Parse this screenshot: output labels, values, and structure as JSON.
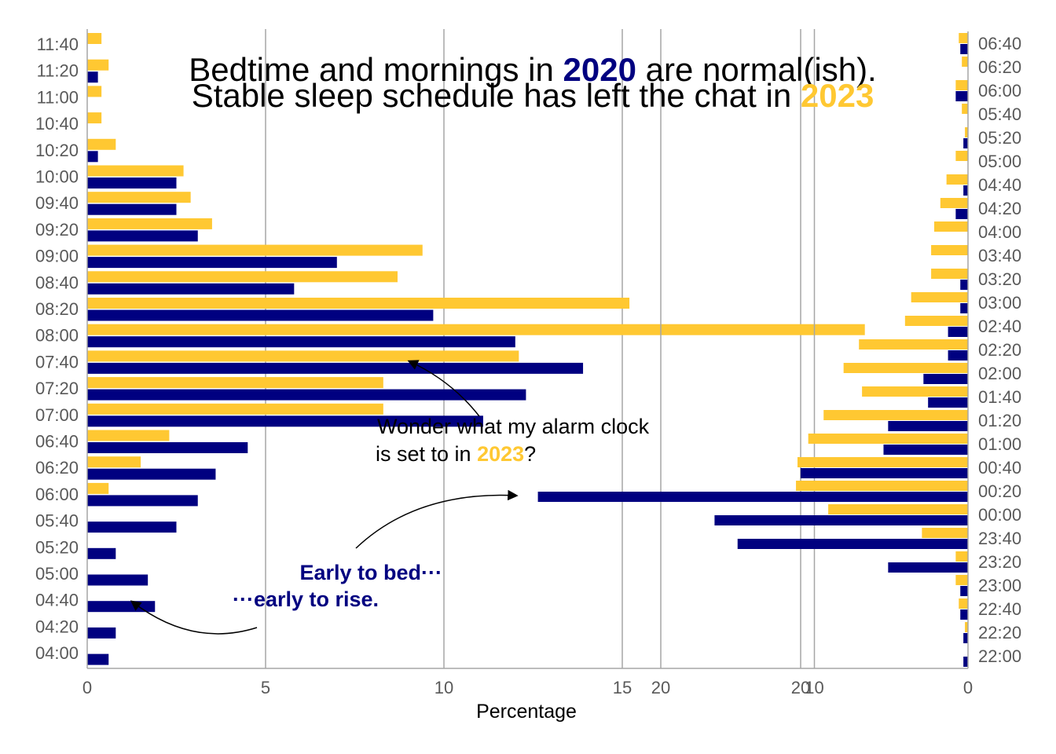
{
  "colors": {
    "y2020": "#000080",
    "y2023": "#ffc832",
    "grid": "#a6a6a6",
    "tick": "#595959"
  },
  "title": {
    "line1_a": "Bedtime and mornings in ",
    "line1_year": "2020",
    "line1_b": " are normal(ish).",
    "line2_a": "Stable sleep schedule has left the chat in ",
    "line2_year": "2023"
  },
  "annotations": {
    "alarm_a": "Wonder what my alarm clock",
    "alarm_b": "is set to in ",
    "alarm_year": "2023",
    "alarm_q": "?",
    "early_1": "Early to bed···",
    "early_2": "···early to rise."
  },
  "chart_data": [
    {
      "type": "bar",
      "orientation": "horizontal",
      "panel": "mornings",
      "categories": [
        "04:00",
        "04:20",
        "04:40",
        "05:00",
        "05:20",
        "05:40",
        "06:00",
        "06:20",
        "06:40",
        "07:00",
        "07:20",
        "07:40",
        "08:00",
        "08:20",
        "08:40",
        "09:00",
        "09:20",
        "09:40",
        "10:00",
        "10:20",
        "10:40",
        "11:00",
        "11:20",
        "11:40"
      ],
      "series": [
        {
          "name": "2023",
          "values": [
            0,
            0,
            0,
            0,
            0,
            0,
            0.6,
            1.5,
            2.3,
            8.3,
            8.3,
            12.1,
            21.8,
            15.2,
            8.7,
            9.4,
            3.5,
            2.9,
            2.7,
            0.8,
            0.4,
            0.4,
            0.6,
            0.4
          ]
        },
        {
          "name": "2020",
          "values": [
            0.6,
            0.8,
            1.9,
            1.7,
            0.8,
            2.5,
            3.1,
            3.6,
            4.5,
            11.1,
            12.3,
            13.9,
            12.0,
            9.7,
            5.8,
            7.0,
            3.1,
            2.5,
            2.5,
            0.3,
            0,
            0,
            0.3,
            0
          ]
        }
      ],
      "xlabel": "Percentage",
      "xlim": [
        0,
        25
      ],
      "xticks": [
        0,
        5,
        10,
        15,
        20
      ]
    },
    {
      "type": "bar",
      "orientation": "horizontal",
      "panel": "bedtimes",
      "x_reversed": true,
      "categories": [
        "22:00",
        "22:20",
        "22:40",
        "23:00",
        "23:20",
        "23:40",
        "00:00",
        "00:20",
        "00:40",
        "01:00",
        "01:20",
        "01:40",
        "02:00",
        "02:20",
        "02:40",
        "03:00",
        "03:20",
        "03:40",
        "04:00",
        "04:20",
        "04:40",
        "05:00",
        "05:20",
        "05:40",
        "06:00",
        "06:20",
        "06:40"
      ],
      "series": [
        {
          "name": "2023",
          "values": [
            0,
            0.2,
            0.6,
            0.8,
            0.8,
            3.0,
            9.1,
            11.2,
            11.1,
            10.4,
            9.4,
            6.9,
            8.1,
            7.1,
            4.1,
            3.7,
            2.4,
            2.4,
            2.2,
            1.8,
            1.4,
            0.8,
            0.2,
            0.4,
            0.8,
            0.4,
            0.6
          ]
        },
        {
          "name": "2020",
          "values": [
            0.3,
            0.3,
            0.5,
            0.5,
            5.2,
            15.0,
            16.5,
            28.0,
            10.9,
            5.5,
            5.2,
            2.6,
            2.9,
            1.3,
            1.3,
            0.5,
            0.5,
            0,
            0,
            0.8,
            0.3,
            0,
            0.3,
            0,
            0.8,
            0,
            0.5
          ]
        }
      ],
      "xlim": [
        28,
        0
      ],
      "xticks": [
        20,
        10,
        0
      ]
    }
  ]
}
